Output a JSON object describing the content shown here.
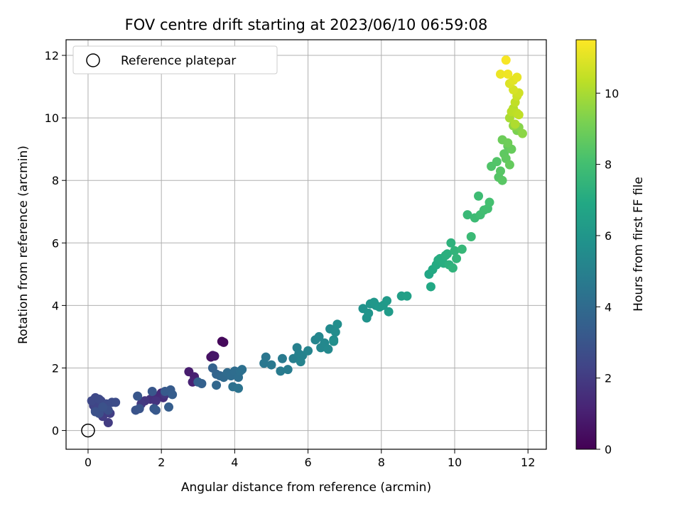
{
  "chart_data": {
    "type": "scatter",
    "title": "FOV centre drift starting at 2023/06/10 06:59:08",
    "xlabel": "Angular distance from reference (arcmin)",
    "ylabel": "Rotation from reference (arcmin)",
    "xlim": [
      -0.6,
      12.5
    ],
    "ylim": [
      -0.6,
      12.5
    ],
    "xticks": [
      0,
      2,
      4,
      6,
      8,
      10,
      12
    ],
    "yticks": [
      0,
      2,
      4,
      6,
      8,
      10,
      12
    ],
    "grid": true,
    "legend": {
      "placement": "upper-left",
      "entries": [
        "Reference platepar"
      ]
    },
    "reference_point": {
      "x": 0,
      "y": 0
    },
    "colorbar": {
      "label": "Hours from first FF file",
      "range": [
        0,
        11.5
      ],
      "ticks": [
        0,
        2,
        4,
        6,
        8,
        10
      ],
      "colormap": "viridis"
    },
    "points": [
      [
        3.65,
        2.85,
        0.2
      ],
      [
        3.7,
        2.82,
        0.25
      ],
      [
        3.35,
        2.35,
        0.5
      ],
      [
        3.4,
        2.4,
        0.6
      ],
      [
        3.45,
        2.38,
        0.7
      ],
      [
        2.75,
        1.88,
        0.9
      ],
      [
        2.9,
        1.72,
        1.0
      ],
      [
        2.85,
        1.55,
        1.1
      ],
      [
        2.0,
        1.2,
        1.3
      ],
      [
        1.9,
        1.1,
        1.4
      ],
      [
        2.05,
        1.05,
        1.5
      ],
      [
        1.7,
        1.0,
        1.6
      ],
      [
        1.85,
        0.95,
        1.7
      ],
      [
        2.1,
        1.15,
        1.75
      ],
      [
        1.55,
        0.95,
        1.8
      ],
      [
        1.45,
        0.85,
        1.9
      ],
      [
        0.55,
        0.25,
        2.0
      ],
      [
        0.4,
        0.45,
        2.05
      ],
      [
        0.6,
        0.55,
        2.1
      ],
      [
        0.3,
        0.6,
        2.15
      ],
      [
        0.2,
        0.65,
        2.2
      ],
      [
        0.45,
        0.7,
        2.25
      ],
      [
        0.15,
        0.8,
        2.3
      ],
      [
        0.25,
        0.85,
        2.35
      ],
      [
        0.35,
        0.95,
        2.4
      ],
      [
        0.2,
        1.05,
        2.45
      ],
      [
        0.1,
        0.95,
        2.5
      ],
      [
        0.3,
        1.0,
        2.55
      ],
      [
        0.5,
        0.85,
        2.6
      ],
      [
        0.65,
        0.9,
        2.65
      ],
      [
        0.75,
        0.9,
        2.7
      ],
      [
        0.55,
        0.65,
        2.75
      ],
      [
        0.3,
        0.55,
        2.8
      ],
      [
        0.2,
        0.6,
        2.85
      ],
      [
        0.4,
        0.75,
        2.9
      ],
      [
        1.3,
        0.65,
        2.95
      ],
      [
        1.4,
        0.7,
        3.0
      ],
      [
        1.35,
        1.1,
        3.05
      ],
      [
        1.75,
        1.25,
        3.1
      ],
      [
        1.8,
        0.7,
        3.15
      ],
      [
        1.85,
        0.65,
        3.2
      ],
      [
        2.1,
        1.25,
        3.25
      ],
      [
        2.25,
        1.3,
        3.3
      ],
      [
        2.3,
        1.15,
        3.35
      ],
      [
        2.2,
        0.75,
        3.4
      ],
      [
        3.0,
        1.55,
        3.5
      ],
      [
        3.1,
        1.5,
        3.55
      ],
      [
        3.4,
        2.0,
        3.6
      ],
      [
        3.5,
        1.8,
        3.7
      ],
      [
        3.6,
        1.75,
        3.75
      ],
      [
        3.5,
        1.45,
        3.8
      ],
      [
        3.7,
        1.7,
        3.9
      ],
      [
        3.8,
        1.85,
        4.0
      ],
      [
        3.9,
        1.75,
        4.05
      ],
      [
        4.0,
        1.9,
        4.1
      ],
      [
        4.1,
        1.7,
        4.15
      ],
      [
        4.15,
        1.9,
        4.2
      ],
      [
        4.2,
        1.95,
        4.25
      ],
      [
        3.95,
        1.4,
        4.3
      ],
      [
        4.1,
        1.35,
        4.35
      ],
      [
        4.85,
        2.35,
        4.5
      ],
      [
        4.8,
        2.15,
        4.55
      ],
      [
        5.0,
        2.1,
        4.6
      ],
      [
        5.3,
        2.3,
        4.7
      ],
      [
        5.25,
        1.9,
        4.75
      ],
      [
        5.45,
        1.95,
        4.8
      ],
      [
        5.6,
        2.3,
        4.9
      ],
      [
        5.7,
        2.65,
        4.95
      ],
      [
        5.75,
        2.45,
        5.0
      ],
      [
        5.85,
        2.4,
        5.05
      ],
      [
        5.8,
        2.2,
        5.1
      ],
      [
        6.0,
        2.55,
        5.15
      ],
      [
        6.2,
        2.9,
        5.2
      ],
      [
        6.3,
        3.0,
        5.25
      ],
      [
        6.35,
        2.65,
        5.3
      ],
      [
        6.45,
        2.8,
        5.35
      ],
      [
        6.55,
        2.6,
        5.4
      ],
      [
        6.6,
        3.25,
        5.45
      ],
      [
        6.7,
        2.9,
        5.5
      ],
      [
        6.75,
        3.15,
        5.55
      ],
      [
        6.8,
        3.4,
        5.6
      ],
      [
        6.7,
        2.85,
        5.65
      ],
      [
        7.5,
        3.9,
        5.8
      ],
      [
        7.6,
        3.6,
        5.85
      ],
      [
        7.65,
        3.75,
        5.9
      ],
      [
        7.7,
        4.05,
        5.95
      ],
      [
        7.85,
        4.0,
        6.0
      ],
      [
        7.8,
        4.1,
        6.05
      ],
      [
        7.95,
        3.95,
        6.1
      ],
      [
        8.05,
        4.0,
        6.15
      ],
      [
        8.15,
        4.15,
        6.2
      ],
      [
        8.2,
        3.8,
        6.25
      ],
      [
        8.55,
        4.3,
        6.4
      ],
      [
        8.7,
        4.3,
        6.5
      ],
      [
        9.3,
        5.0,
        6.8
      ],
      [
        9.35,
        4.6,
        6.9
      ],
      [
        9.4,
        5.15,
        6.95
      ],
      [
        9.5,
        5.3,
        7.0
      ],
      [
        9.55,
        5.45,
        7.05
      ],
      [
        9.6,
        5.5,
        7.1
      ],
      [
        9.7,
        5.35,
        7.15
      ],
      [
        9.75,
        5.6,
        7.2
      ],
      [
        9.8,
        5.65,
        7.25
      ],
      [
        9.85,
        5.3,
        7.3
      ],
      [
        9.9,
        6.0,
        7.35
      ],
      [
        9.95,
        5.2,
        7.4
      ],
      [
        10.0,
        5.75,
        7.45
      ],
      [
        10.05,
        5.5,
        7.5
      ],
      [
        10.2,
        5.8,
        7.6
      ],
      [
        10.35,
        6.9,
        7.7
      ],
      [
        10.45,
        6.2,
        7.75
      ],
      [
        10.55,
        6.8,
        7.8
      ],
      [
        10.65,
        7.5,
        7.85
      ],
      [
        10.7,
        6.9,
        7.9
      ],
      [
        10.8,
        7.05,
        7.95
      ],
      [
        10.9,
        7.1,
        8.0
      ],
      [
        10.95,
        7.3,
        8.05
      ],
      [
        11.0,
        8.45,
        8.3
      ],
      [
        11.15,
        8.6,
        8.35
      ],
      [
        11.2,
        8.1,
        8.4
      ],
      [
        11.25,
        8.3,
        8.45
      ],
      [
        11.3,
        8.0,
        8.5
      ],
      [
        11.35,
        8.85,
        8.6
      ],
      [
        11.4,
        8.7,
        8.65
      ],
      [
        11.45,
        9.1,
        8.7
      ],
      [
        11.5,
        8.5,
        8.75
      ],
      [
        11.55,
        9.0,
        8.8
      ],
      [
        11.3,
        9.3,
        8.9
      ],
      [
        11.45,
        9.2,
        8.95
      ],
      [
        11.7,
        9.6,
        9.2
      ],
      [
        11.75,
        9.7,
        9.4
      ],
      [
        11.85,
        9.5,
        9.5
      ],
      [
        11.6,
        9.75,
        9.6
      ],
      [
        11.5,
        10.0,
        10.0
      ],
      [
        11.6,
        10.3,
        10.2
      ],
      [
        11.65,
        10.5,
        10.4
      ],
      [
        11.7,
        10.7,
        10.6
      ],
      [
        11.75,
        10.8,
        10.7
      ],
      [
        11.6,
        10.9,
        10.8
      ],
      [
        11.5,
        11.1,
        10.9
      ],
      [
        11.6,
        11.2,
        11.0
      ],
      [
        11.7,
        11.3,
        11.1
      ],
      [
        11.25,
        11.4,
        11.2
      ],
      [
        11.45,
        11.4,
        11.25
      ],
      [
        11.4,
        11.85,
        11.4
      ],
      [
        11.55,
        10.2,
        10.3
      ],
      [
        11.7,
        10.15,
        10.35
      ],
      [
        11.75,
        10.1,
        10.4
      ],
      [
        11.65,
        9.8,
        10.1
      ]
    ]
  }
}
